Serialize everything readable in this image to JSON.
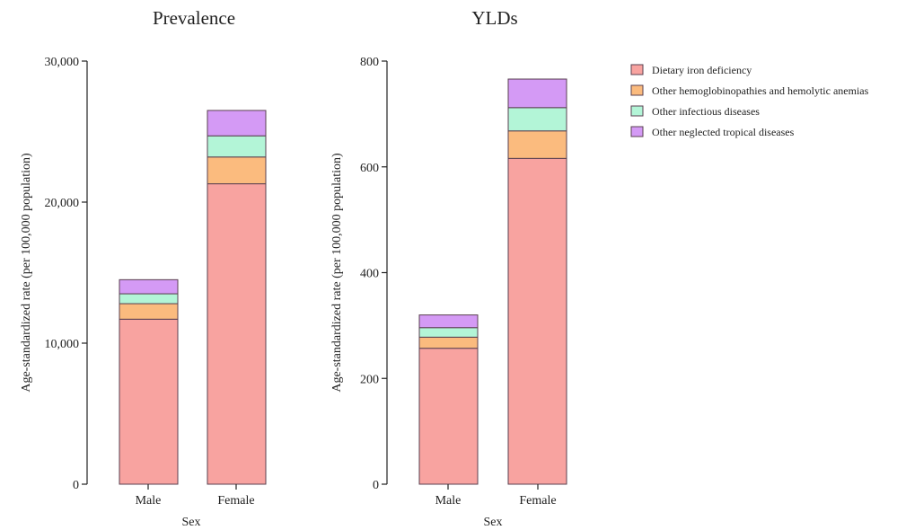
{
  "chart_data": [
    {
      "type": "bar",
      "stacked": true,
      "title": "Prevalence",
      "xlabel": "Sex",
      "ylabel": "Age-standardized rate (per 100,000 population)",
      "categories": [
        "Male",
        "Female"
      ],
      "ylim": [
        0,
        30000
      ],
      "yticks": [
        0,
        10000,
        20000,
        30000
      ],
      "ytick_labels": [
        "0",
        "10,000",
        "20,000",
        "30,000"
      ],
      "series": [
        {
          "name": "Dietary iron deficiency",
          "values": [
            11700,
            21300
          ]
        },
        {
          "name": "Other hemoglobinopathies and hemolytic anemias",
          "values": [
            1100,
            1900
          ]
        },
        {
          "name": "Other infectious diseases",
          "values": [
            700,
            1500
          ]
        },
        {
          "name": "Other neglected tropical diseases",
          "values": [
            1000,
            1800
          ]
        }
      ]
    },
    {
      "type": "bar",
      "stacked": true,
      "title": "YLDs",
      "xlabel": "Sex",
      "ylabel": "Age-standardized rate (per 100,000 population)",
      "categories": [
        "Male",
        "Female"
      ],
      "ylim": [
        0,
        800
      ],
      "yticks": [
        0,
        200,
        400,
        600,
        800
      ],
      "ytick_labels": [
        "0",
        "200",
        "400",
        "600",
        "800"
      ],
      "series": [
        {
          "name": "Dietary iron deficiency",
          "values": [
            257,
            616
          ]
        },
        {
          "name": "Other hemoglobinopathies and hemolytic anemias",
          "values": [
            21,
            52
          ]
        },
        {
          "name": "Other infectious diseases",
          "values": [
            18,
            44
          ]
        },
        {
          "name": "Other neglected tropical diseases",
          "values": [
            24,
            54
          ]
        }
      ]
    }
  ],
  "legend": {
    "placement": "top-right",
    "items": [
      {
        "label": "Dietary iron deficiency",
        "color": "#f8a3a0"
      },
      {
        "label": "Other hemoglobinopathies and hemolytic anemias",
        "color": "#fbbb7e"
      },
      {
        "label": "Other infectious diseases",
        "color": "#b3f5d7"
      },
      {
        "label": "Other neglected tropical diseases",
        "color": "#d49af5"
      }
    ]
  },
  "colors": {
    "bar_stroke": "#5a4050",
    "axis": "#222222"
  }
}
